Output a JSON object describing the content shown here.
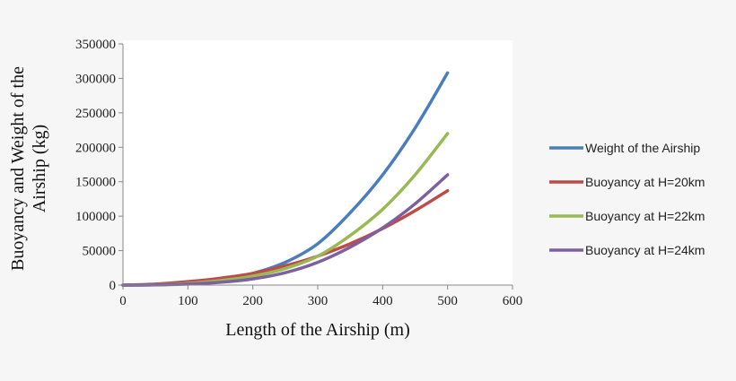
{
  "chart_data": {
    "type": "line",
    "title": "",
    "xlabel": "Length of the Airship (m)",
    "ylabel_lines": [
      "Buoyancy and Weight of the",
      "Airship (kg)"
    ],
    "xlim": [
      0,
      600
    ],
    "ylim": [
      0,
      350000
    ],
    "xticks": [
      0,
      100,
      200,
      300,
      400,
      500,
      600
    ],
    "yticks": [
      0,
      50000,
      100000,
      150000,
      200000,
      250000,
      300000,
      350000
    ],
    "grid": false,
    "legend_placement": "right",
    "x": [
      0,
      50,
      100,
      150,
      200,
      250,
      300,
      350,
      400,
      450,
      500
    ],
    "series": [
      {
        "name": "Weight of the Airship",
        "color": "#4a7ebb",
        "values": [
          0,
          500,
          2500,
          8000,
          17000,
          33000,
          60000,
          105000,
          160000,
          228000,
          308000
        ]
      },
      {
        "name": "Buoyancy at H=20km",
        "color": "#be4b48",
        "values": [
          0,
          1500,
          5000,
          10000,
          17000,
          28000,
          42000,
          60000,
          82000,
          108000,
          137000
        ]
      },
      {
        "name": "Buoyancy at H=22km",
        "color": "#98b954",
        "values": [
          0,
          500,
          2500,
          6500,
          13000,
          24000,
          42000,
          72000,
          110000,
          160000,
          220000
        ]
      },
      {
        "name": "Buoyancy at H=24km",
        "color": "#7d60a0",
        "values": [
          0,
          300,
          1500,
          4000,
          9000,
          18000,
          33000,
          55000,
          83000,
          118000,
          160000
        ]
      }
    ]
  }
}
